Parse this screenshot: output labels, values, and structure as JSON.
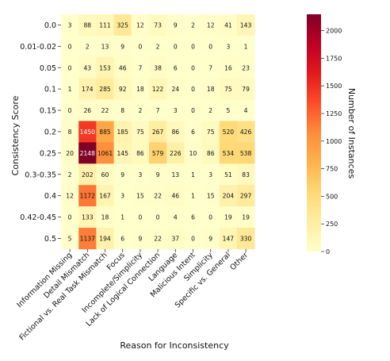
{
  "chart_data": {
    "type": "heatmap",
    "title": "",
    "xlabel": "Reason for Inconsistency",
    "ylabel": "Consistency Score",
    "colorbar_label": "Number of Instances",
    "color_range": [
      0,
      2148
    ],
    "colorbar_ticks": [
      0,
      250,
      500,
      750,
      1000,
      1250,
      1500,
      1750,
      2000
    ],
    "colormap": "YlOrRd",
    "colors": [
      "#ffffcc",
      "#ffeda0",
      "#fed976",
      "#feb24c",
      "#fd8d3c",
      "#fc4e2a",
      "#e31a1c",
      "#bd0026",
      "#800026"
    ],
    "x_categories": [
      "Information Missing",
      "Detail Mismatch",
      "Fictional vs. Real Task Mismatch",
      "Focus",
      "Incomplete/Simplicity",
      "Lack of Logical Connection",
      "Language",
      "Malicious Intent",
      "Simplicity",
      "Specific vs. General",
      "Other"
    ],
    "y_categories": [
      "0.0",
      "0.01-0.02",
      "0.05",
      "0.1",
      "0.15",
      "0.2",
      "0.25",
      "0.3-0.35",
      "0.4",
      "0.42-0.45",
      "0.5"
    ],
    "values": [
      [
        3,
        88,
        111,
        325,
        12,
        73,
        9,
        2,
        12,
        41,
        143
      ],
      [
        0,
        2,
        13,
        9,
        0,
        2,
        0,
        0,
        0,
        3,
        1
      ],
      [
        0,
        43,
        153,
        46,
        7,
        38,
        6,
        0,
        7,
        16,
        23
      ],
      [
        1,
        174,
        285,
        92,
        18,
        122,
        24,
        0,
        18,
        75,
        79
      ],
      [
        0,
        26,
        22,
        8,
        2,
        7,
        3,
        0,
        2,
        5,
        4
      ],
      [
        8,
        1450,
        885,
        185,
        75,
        267,
        86,
        6,
        75,
        520,
        426
      ],
      [
        20,
        2148,
        1061,
        145,
        86,
        579,
        226,
        10,
        86,
        534,
        538
      ],
      [
        2,
        202,
        60,
        9,
        3,
        9,
        13,
        1,
        3,
        51,
        83
      ],
      [
        12,
        1172,
        167,
        3,
        15,
        22,
        46,
        1,
        15,
        204,
        297
      ],
      [
        0,
        133,
        18,
        1,
        0,
        0,
        4,
        6,
        0,
        19,
        19
      ],
      [
        5,
        1137,
        194,
        6,
        9,
        22,
        37,
        0,
        9,
        147,
        330
      ]
    ]
  }
}
